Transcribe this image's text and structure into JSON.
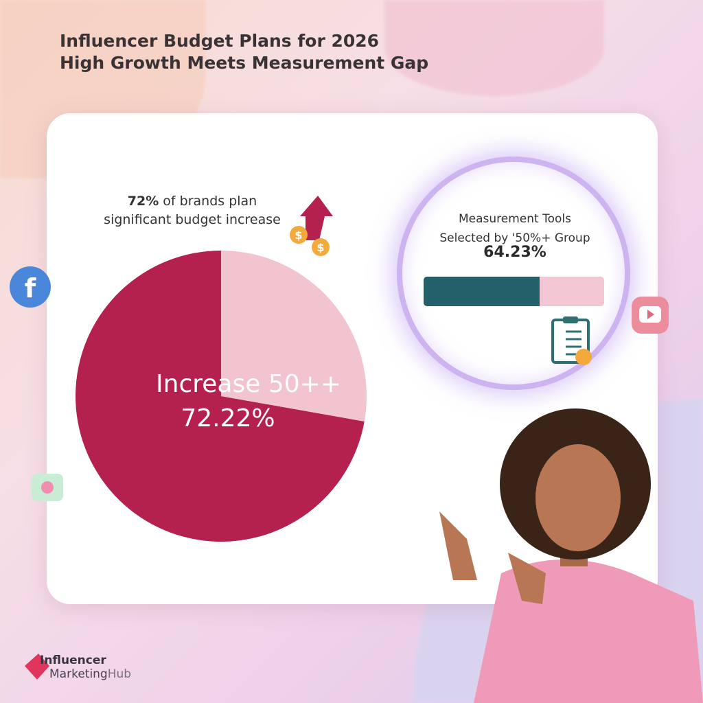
{
  "title": {
    "line1": "Influencer Budget Plans for 2026",
    "line2": "High Growth Meets Measurement Gap"
  },
  "left_panel": {
    "caption_bold": "72%",
    "caption_rest": " of brands plan",
    "caption_line2": "significant budget increase"
  },
  "right_panel": {
    "label_line1": "Measurement Tools",
    "label_line2": "Selected by '50%+ Group",
    "value": "64.23%"
  },
  "logo": {
    "line1": "Influencer",
    "line2a": "Marketing",
    "line2b": "Hub"
  },
  "colors": {
    "pie_main": "#b5214f",
    "pie_rest": "#f2c4d0",
    "bar_fill": "#22616a",
    "bar_track": "#f3c6d3"
  },
  "chart_data": [
    {
      "type": "pie",
      "slices": [
        {
          "label": "Increase 50++",
          "value": 72.22,
          "display": "72.22%"
        },
        {
          "label": "",
          "value": 27.78
        }
      ],
      "data_label_line1": "Increase 50++",
      "data_label_line2": "72.22%"
    },
    {
      "type": "bar",
      "title": "Measurement Tools Selected by '50%+ Group",
      "value": 64.23,
      "display": "64.23%"
    }
  ],
  "icons": [
    "facebook-icon",
    "youtube-icon",
    "money-arrow-up-icon",
    "clipboard-checklist-icon",
    "worried-emoji-icon",
    "heart-icon"
  ]
}
